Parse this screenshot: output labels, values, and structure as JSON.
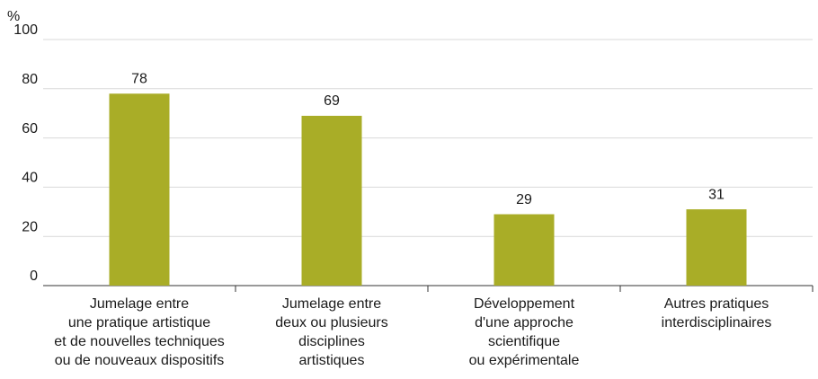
{
  "chart_data": {
    "type": "bar",
    "y_label": "%",
    "categories": [
      [
        "Jumelage entre",
        "une pratique artistique",
        "et de nouvelles techniques",
        "ou de nouveaux dispositifs"
      ],
      [
        "Jumelage entre",
        "deux ou plusieurs",
        "disciplines",
        "artistiques"
      ],
      [
        "Développement",
        "d'une approche",
        "scientifique",
        "ou expérimentale"
      ],
      [
        "Autres pratiques",
        "interdisciplinaires"
      ]
    ],
    "values": [
      78,
      69,
      29,
      31
    ],
    "color": "#a9ad27",
    "ylim": [
      0,
      100
    ],
    "yticks": [
      0,
      20,
      40,
      60,
      80,
      100
    ],
    "grid": true
  }
}
